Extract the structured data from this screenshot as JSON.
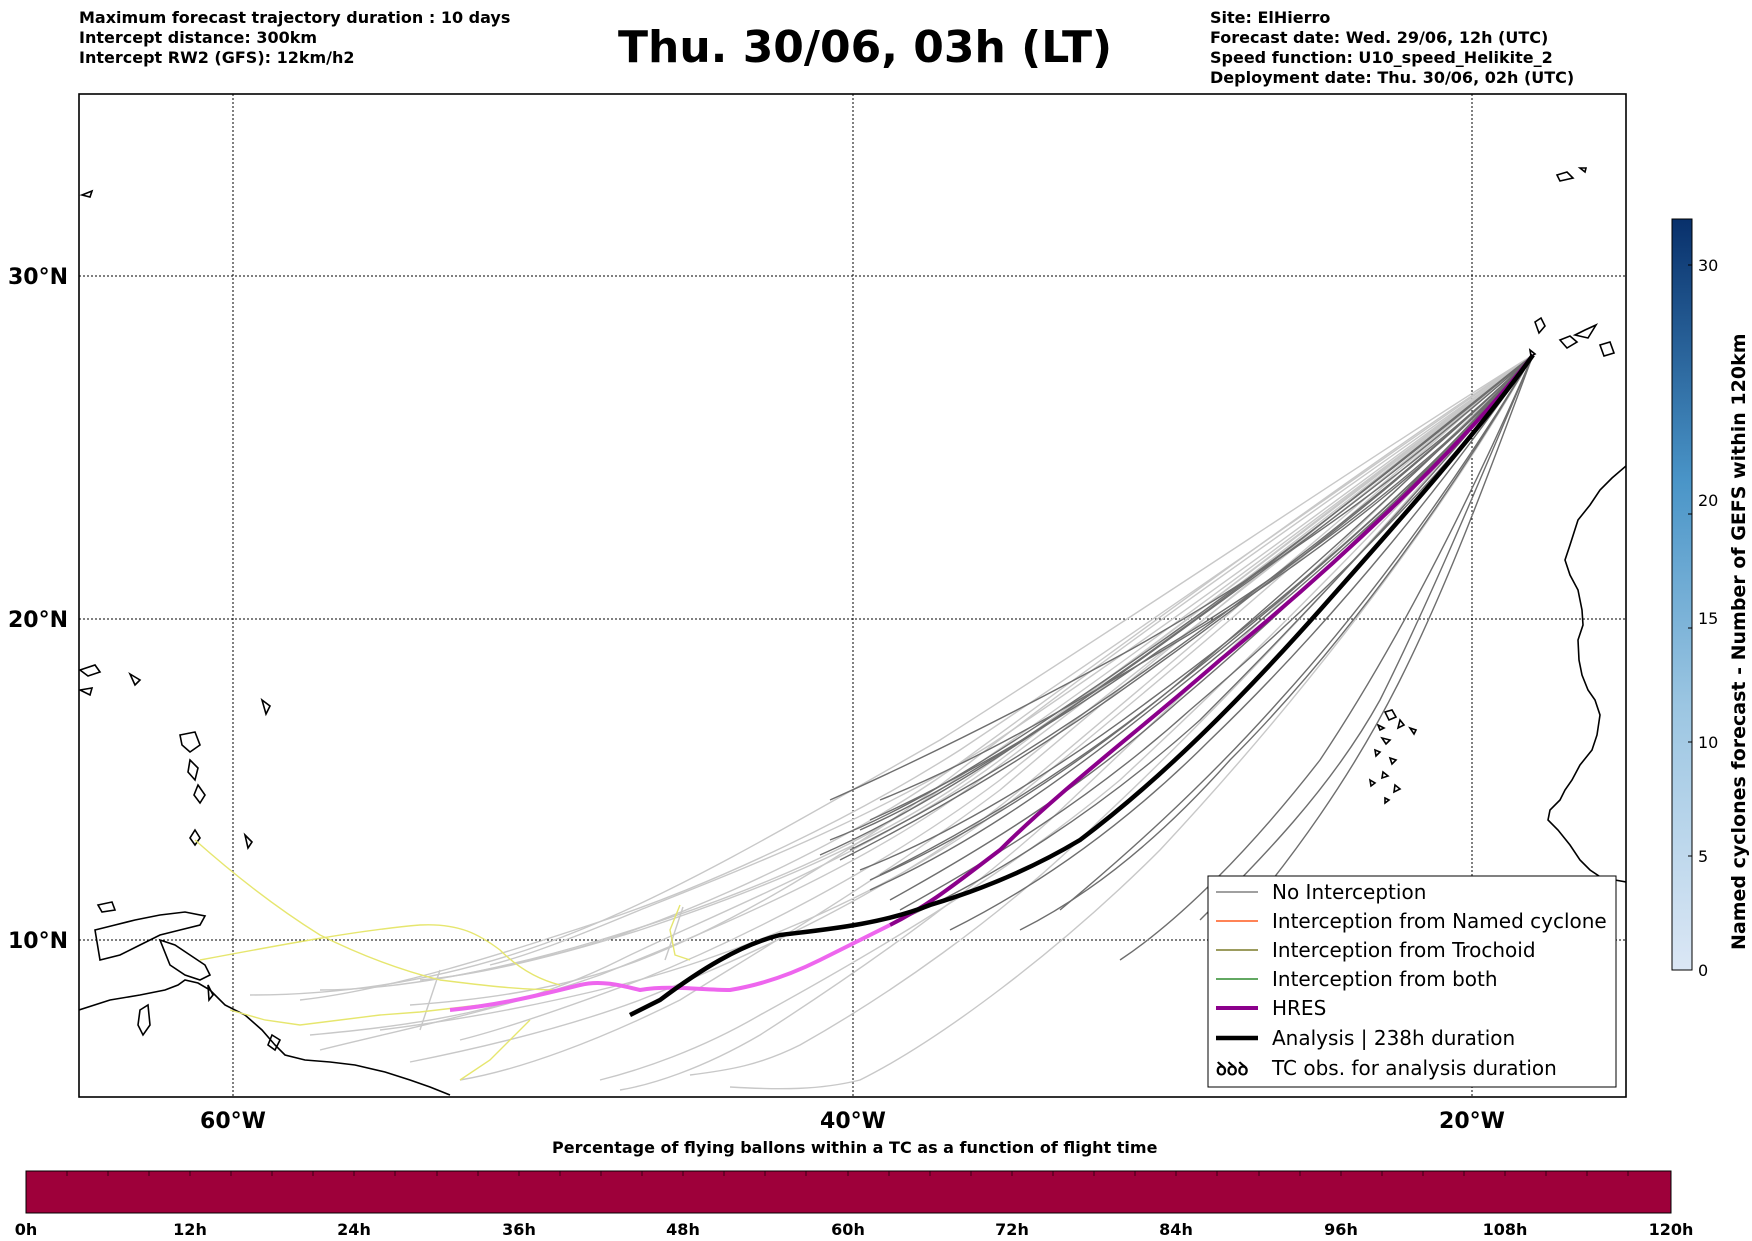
{
  "header_left": {
    "line1": "Maximum forecast trajectory duration : 10 days",
    "line2": "Intercept distance: 300km",
    "line3": "Intercept RW2 (GFS):  12km/h2"
  },
  "main_title": "Thu. 30/06, 03h (LT)",
  "header_right": {
    "line1": "Site: ElHierro",
    "line2": "Forecast date: Wed. 29/06, 12h (UTC)",
    "line3": "Speed function: U10_speed_Helikite_2",
    "line4": "Deployment date: Thu. 30/06, 02h (UTC)"
  },
  "map": {
    "lon_range": [
      -65,
      15
    ],
    "lat_range": [
      5.3,
      34.6
    ],
    "lat_labels": [
      "30°N",
      "20°N",
      "10°N"
    ],
    "lon_labels": [
      "60°W",
      "40°W",
      "20°W"
    ],
    "lat_ticks": [
      30,
      20,
      10
    ],
    "lon_ticks": [
      -60,
      -40,
      -20
    ]
  },
  "legend": {
    "items": [
      {
        "label": "No Interception",
        "color": "#808080"
      },
      {
        "label": "Interception from Named cyclone",
        "color": "#ff5a1e"
      },
      {
        "label": "Interception from Trochoid",
        "color": "#7b7b2a"
      },
      {
        "label": "Interception from both",
        "color": "#2e8b2e"
      },
      {
        "label": "HRES",
        "color": "#8b008b"
      },
      {
        "label": "Analysis | 238h duration",
        "color": "#000000"
      },
      {
        "label": "TC obs. for analysis duration",
        "color": "#000000"
      }
    ]
  },
  "side_colorbar": {
    "title": "Named cyclones forecast - Number of GEFS within 120km",
    "ticks": [
      "0",
      "5",
      "10",
      "15",
      "20",
      "30"
    ],
    "min": 0,
    "max": 33,
    "colors": [
      "#dbe7f5",
      "#08306b"
    ]
  },
  "bottom_colorbar": {
    "title": "Percentage of flying ballons within a TC as a function of flight time",
    "ticks": [
      "0h",
      "12h",
      "24h",
      "36h",
      "48h",
      "60h",
      "72h",
      "84h",
      "96h",
      "108h",
      "120h"
    ],
    "color": "#9e003a"
  },
  "colors": {
    "ensemble_dark": "#6e6e6e",
    "ensemble_light": "#c8c8c8",
    "ensemble_yellow": "#e6e66e",
    "hres": "#8b008b",
    "hres_pink": "#ee66ee",
    "analysis": "#000000"
  }
}
